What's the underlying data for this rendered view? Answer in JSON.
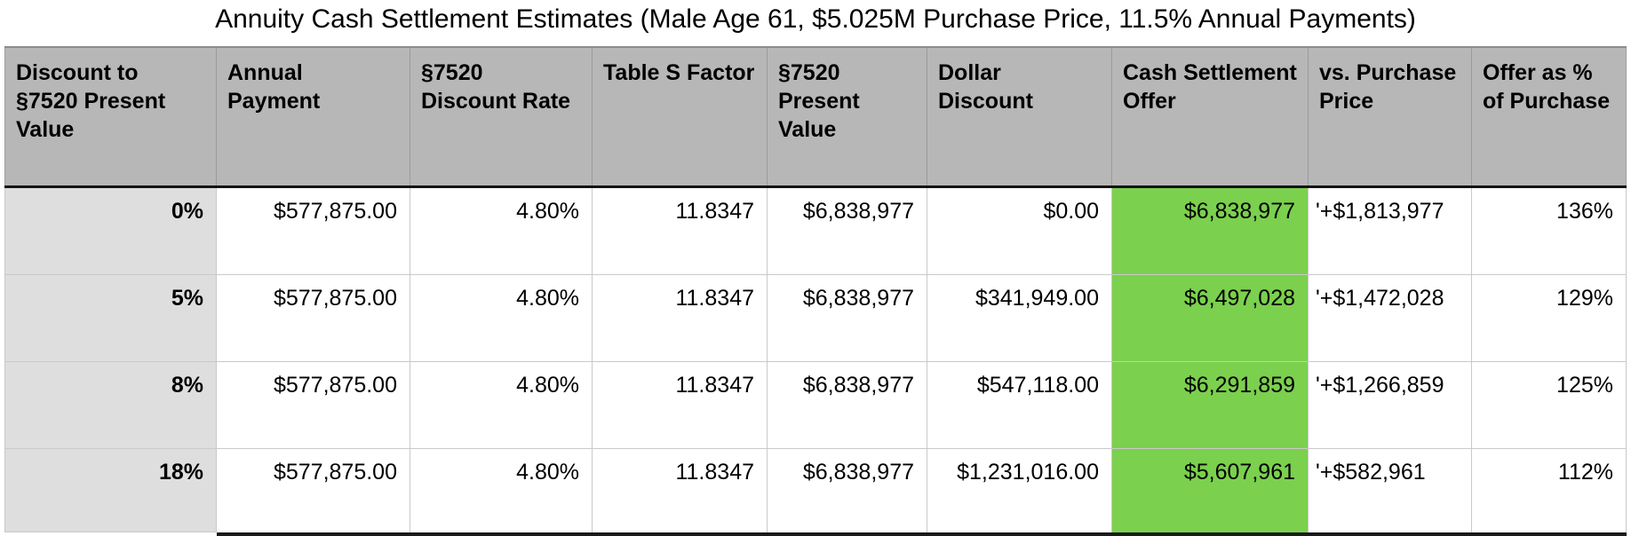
{
  "title": "Annuity Cash Settlement Estimates (Male Age 61, $5.025M Purchase Price, 11.5% Annual Payments)",
  "table": {
    "headers": [
      "Discount to §7520 Present Value",
      "Annual Payment",
      "§7520 Discount Rate",
      "Table S Factor",
      "§7520 Present Value",
      "Dollar Discount",
      "Cash Settlement Offer",
      "vs. Purchase Price",
      "Offer as % of Purchase"
    ],
    "rows": [
      {
        "cells": [
          "0%",
          "$577,875.00",
          "4.80%",
          "11.8347",
          "$6,838,977",
          "$0.00",
          "$6,838,977",
          "'+$1,813,977",
          "136%"
        ]
      },
      {
        "cells": [
          "5%",
          "$577,875.00",
          "4.80%",
          "11.8347",
          "$6,838,977",
          "$341,949.00",
          "$6,497,028",
          "'+$1,472,028",
          "129%"
        ]
      },
      {
        "cells": [
          "8%",
          "$577,875.00",
          "4.80%",
          "11.8347",
          "$6,838,977",
          "$547,118.00",
          "$6,291,859",
          "'+$1,266,859",
          "125%"
        ]
      },
      {
        "cells": [
          "18%",
          "$577,875.00",
          "4.80%",
          "11.8347",
          "$6,838,977",
          "$1,231,016.00",
          "$5,607,961",
          "'+$582,961",
          "112%"
        ]
      }
    ],
    "colors": {
      "header_bg": "#b7b7b7",
      "row_label_bg": "#dedede",
      "offer_highlight": "#7bd04e"
    }
  }
}
